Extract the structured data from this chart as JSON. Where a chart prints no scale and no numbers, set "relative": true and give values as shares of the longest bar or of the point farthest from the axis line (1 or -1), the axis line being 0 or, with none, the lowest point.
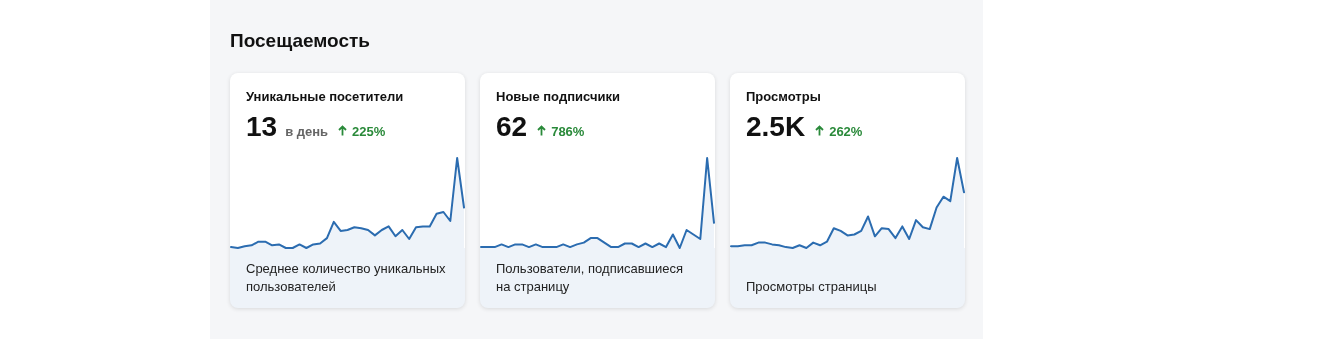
{
  "chart_data": [
    {
      "type": "area",
      "title": "Уникальные посетители",
      "subtitle": "13",
      "relative": true,
      "categories": [
        null,
        null,
        null,
        null,
        null,
        null,
        null,
        null,
        null,
        null,
        null,
        null,
        null,
        null,
        null,
        null,
        null,
        null,
        null,
        null,
        null,
        null,
        null,
        null,
        null,
        null,
        null,
        null,
        null,
        null,
        null,
        null,
        null,
        null,
        null
      ],
      "series": [
        {
          "color": "#2b6cb0",
          "values": [
            0.01,
            0.0,
            0.02,
            0.03,
            0.07,
            0.07,
            0.03,
            0.04,
            0.0,
            0.0,
            0.04,
            0.0,
            0.04,
            0.05,
            0.11,
            0.29,
            0.19,
            0.2,
            0.23,
            0.22,
            0.2,
            0.14,
            0.2,
            0.24,
            0.13,
            0.2,
            0.1,
            0.23,
            0.24,
            0.24,
            0.38,
            0.4,
            0.3,
            1,
            0.45
          ]
        }
      ],
      "annotations": [
        "Посещаемость",
        "в день",
        "225%",
        "Среднее количество уникальных пользователей"
      ]
    },
    {
      "type": "area",
      "title": "Новые подписчики",
      "subtitle": "62",
      "relative": true,
      "categories": [
        null,
        null,
        null,
        null,
        null,
        null,
        null,
        null,
        null,
        null,
        null,
        null,
        null,
        null,
        null,
        null,
        null,
        null,
        null,
        null,
        null,
        null,
        null,
        null,
        null,
        null,
        null,
        null,
        null,
        null,
        null,
        null,
        null,
        null,
        null
      ],
      "series": [
        {
          "color": "#2b6cb0",
          "values": [
            0.01,
            0.01,
            0.01,
            0.04,
            0.01,
            0.04,
            0.04,
            0.01,
            0.04,
            0.01,
            0.01,
            0.01,
            0.04,
            0.01,
            0.04,
            0.06,
            0.11,
            0.11,
            0.06,
            0.01,
            0.01,
            0.05,
            0.05,
            0.01,
            0.05,
            0.01,
            0.05,
            0.01,
            0.15,
            0,
            0.2,
            0.15,
            0.1,
            1,
            0.28
          ]
        }
      ],
      "annotations": [
        "786%",
        "Пользователи, подписавшиеся на страницу"
      ]
    },
    {
      "type": "area",
      "title": "Просмотры",
      "subtitle": "2.5K",
      "relative": true,
      "categories": [
        null,
        null,
        null,
        null,
        null,
        null,
        null,
        null,
        null,
        null,
        null,
        null,
        null,
        null,
        null,
        null,
        null,
        null,
        null,
        null,
        null,
        null,
        null,
        null,
        null,
        null,
        null,
        null,
        null,
        null,
        null,
        null,
        null,
        null,
        null
      ],
      "series": [
        {
          "color": "#2b6cb0",
          "values": [
            0.02,
            0.02,
            0.03,
            0.03,
            0.06,
            0.06,
            0.04,
            0.03,
            0.01,
            0,
            0.03,
            0,
            0.06,
            0.03,
            0.07,
            0.22,
            0.19,
            0.14,
            0.15,
            0.19,
            0.35,
            0.13,
            0.22,
            0.21,
            0.11,
            0.24,
            0.1,
            0.31,
            0.23,
            0.21,
            0.45,
            0.57,
            0.52,
            1,
            0.62
          ]
        }
      ],
      "annotations": [
        "262%",
        "Просмотры страницы"
      ]
    }
  ]
}
